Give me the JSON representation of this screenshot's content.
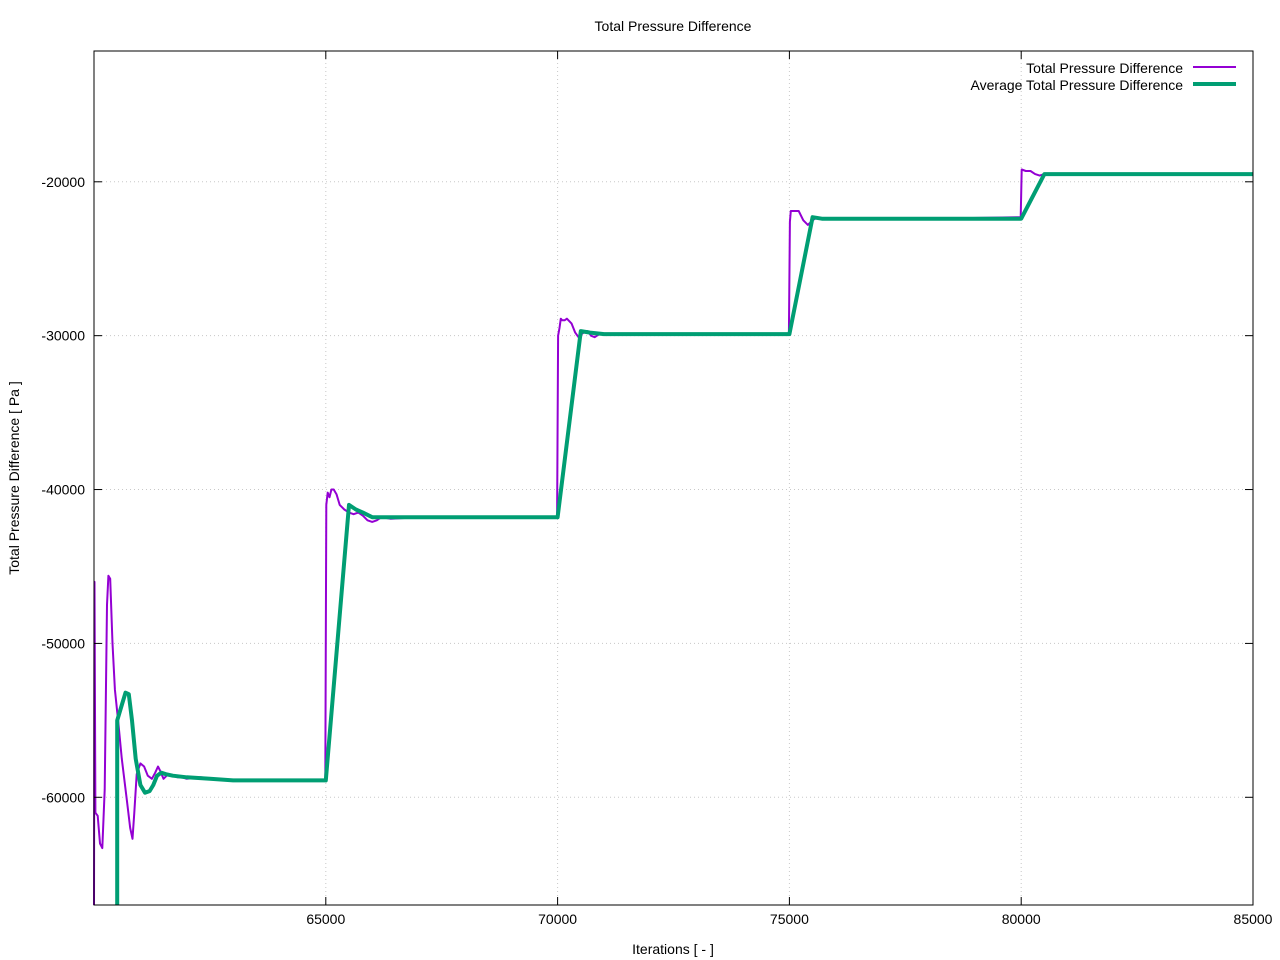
{
  "chart_data": {
    "type": "line",
    "title": "Total Pressure Difference",
    "xlabel": "Iterations [ - ]",
    "ylabel": "Total Pressure Difference [ Pa ]",
    "xlim": [
      60000,
      85000
    ],
    "ylim": [
      -67000,
      -11500
    ],
    "x_ticks": [
      65000,
      70000,
      75000,
      80000,
      85000
    ],
    "y_ticks": [
      -60000,
      -50000,
      -40000,
      -30000,
      -20000
    ],
    "grid": true,
    "legend_position": "top-right",
    "series": [
      {
        "name": "Total Pressure Difference",
        "color": "#9400d3",
        "points": [
          [
            60000,
            -67000
          ],
          [
            60010,
            -46000
          ],
          [
            60030,
            -61000
          ],
          [
            60080,
            -61200
          ],
          [
            60130,
            -63000
          ],
          [
            60180,
            -63300
          ],
          [
            60230,
            -59500
          ],
          [
            60280,
            -47500
          ],
          [
            60310,
            -45600
          ],
          [
            60350,
            -45800
          ],
          [
            60400,
            -50000
          ],
          [
            60450,
            -53000
          ],
          [
            60520,
            -55000
          ],
          [
            60600,
            -57500
          ],
          [
            60700,
            -60000
          ],
          [
            60780,
            -62000
          ],
          [
            60830,
            -62700
          ],
          [
            60870,
            -61000
          ],
          [
            60920,
            -58500
          ],
          [
            61000,
            -57800
          ],
          [
            61080,
            -58000
          ],
          [
            61160,
            -58600
          ],
          [
            61250,
            -58800
          ],
          [
            61320,
            -58400
          ],
          [
            61380,
            -58000
          ],
          [
            61430,
            -58300
          ],
          [
            61500,
            -58800
          ],
          [
            61600,
            -58500
          ],
          [
            61700,
            -58600
          ],
          [
            61800,
            -58700
          ],
          [
            61900,
            -58700
          ],
          [
            62000,
            -58800
          ],
          [
            62300,
            -58700
          ],
          [
            62600,
            -58800
          ],
          [
            63000,
            -58900
          ],
          [
            64000,
            -58900
          ],
          [
            64990,
            -58900
          ],
          [
            65010,
            -41000
          ],
          [
            65040,
            -40200
          ],
          [
            65080,
            -40500
          ],
          [
            65120,
            -40000
          ],
          [
            65170,
            -40000
          ],
          [
            65230,
            -40300
          ],
          [
            65300,
            -41000
          ],
          [
            65400,
            -41300
          ],
          [
            65500,
            -41500
          ],
          [
            65600,
            -41600
          ],
          [
            65700,
            -41500
          ],
          [
            65800,
            -41700
          ],
          [
            65900,
            -42000
          ],
          [
            66000,
            -42100
          ],
          [
            66100,
            -42000
          ],
          [
            66200,
            -41800
          ],
          [
            66400,
            -41900
          ],
          [
            67000,
            -41800
          ],
          [
            68000,
            -41800
          ],
          [
            69000,
            -41800
          ],
          [
            69990,
            -41800
          ],
          [
            70010,
            -30000
          ],
          [
            70040,
            -29500
          ],
          [
            70070,
            -28900
          ],
          [
            70100,
            -29000
          ],
          [
            70150,
            -29000
          ],
          [
            70200,
            -28900
          ],
          [
            70300,
            -29200
          ],
          [
            70380,
            -29800
          ],
          [
            70450,
            -30100
          ],
          [
            70520,
            -29900
          ],
          [
            70600,
            -29700
          ],
          [
            70650,
            -29700
          ],
          [
            70720,
            -30000
          ],
          [
            70800,
            -30100
          ],
          [
            70900,
            -29900
          ],
          [
            71000,
            -29900
          ],
          [
            72000,
            -29900
          ],
          [
            73000,
            -29900
          ],
          [
            74990,
            -29900
          ],
          [
            75010,
            -22600
          ],
          [
            75030,
            -21900
          ],
          [
            75100,
            -21900
          ],
          [
            75200,
            -21900
          ],
          [
            75300,
            -22500
          ],
          [
            75400,
            -22800
          ],
          [
            75500,
            -22500
          ],
          [
            75600,
            -22300
          ],
          [
            75700,
            -22400
          ],
          [
            76000,
            -22400
          ],
          [
            77000,
            -22400
          ],
          [
            78000,
            -22400
          ],
          [
            79990,
            -22300
          ],
          [
            80010,
            -19200
          ],
          [
            80100,
            -19300
          ],
          [
            80200,
            -19300
          ],
          [
            80300,
            -19500
          ],
          [
            80400,
            -19600
          ],
          [
            80500,
            -19500
          ],
          [
            81000,
            -19500
          ],
          [
            83000,
            -19500
          ],
          [
            85000,
            -19500
          ]
        ]
      },
      {
        "name": "Average Total Pressure Difference",
        "color": "#009e73",
        "points": [
          [
            60500,
            -67000
          ],
          [
            60500,
            -55000
          ],
          [
            60600,
            -54000
          ],
          [
            60680,
            -53200
          ],
          [
            60750,
            -53300
          ],
          [
            60820,
            -55000
          ],
          [
            60900,
            -57500
          ],
          [
            61000,
            -59200
          ],
          [
            61100,
            -59700
          ],
          [
            61200,
            -59600
          ],
          [
            61280,
            -59200
          ],
          [
            61360,
            -58600
          ],
          [
            61450,
            -58400
          ],
          [
            61550,
            -58500
          ],
          [
            61700,
            -58600
          ],
          [
            62000,
            -58700
          ],
          [
            62500,
            -58800
          ],
          [
            63000,
            -58900
          ],
          [
            64000,
            -58900
          ],
          [
            65000,
            -58900
          ],
          [
            65500,
            -41000
          ],
          [
            65650,
            -41300
          ],
          [
            65800,
            -41500
          ],
          [
            66000,
            -41800
          ],
          [
            66500,
            -41800
          ],
          [
            67000,
            -41800
          ],
          [
            68000,
            -41800
          ],
          [
            69000,
            -41800
          ],
          [
            70000,
            -41800
          ],
          [
            70500,
            -29700
          ],
          [
            70700,
            -29800
          ],
          [
            71000,
            -29900
          ],
          [
            72000,
            -29900
          ],
          [
            73000,
            -29900
          ],
          [
            74000,
            -29900
          ],
          [
            75000,
            -29900
          ],
          [
            75500,
            -22300
          ],
          [
            75700,
            -22400
          ],
          [
            76000,
            -22400
          ],
          [
            77000,
            -22400
          ],
          [
            78000,
            -22400
          ],
          [
            79000,
            -22400
          ],
          [
            80000,
            -22400
          ],
          [
            80500,
            -19500
          ],
          [
            80700,
            -19500
          ],
          [
            81000,
            -19500
          ],
          [
            82000,
            -19500
          ],
          [
            83000,
            -19500
          ],
          [
            84000,
            -19500
          ],
          [
            85000,
            -19500
          ]
        ]
      }
    ]
  }
}
